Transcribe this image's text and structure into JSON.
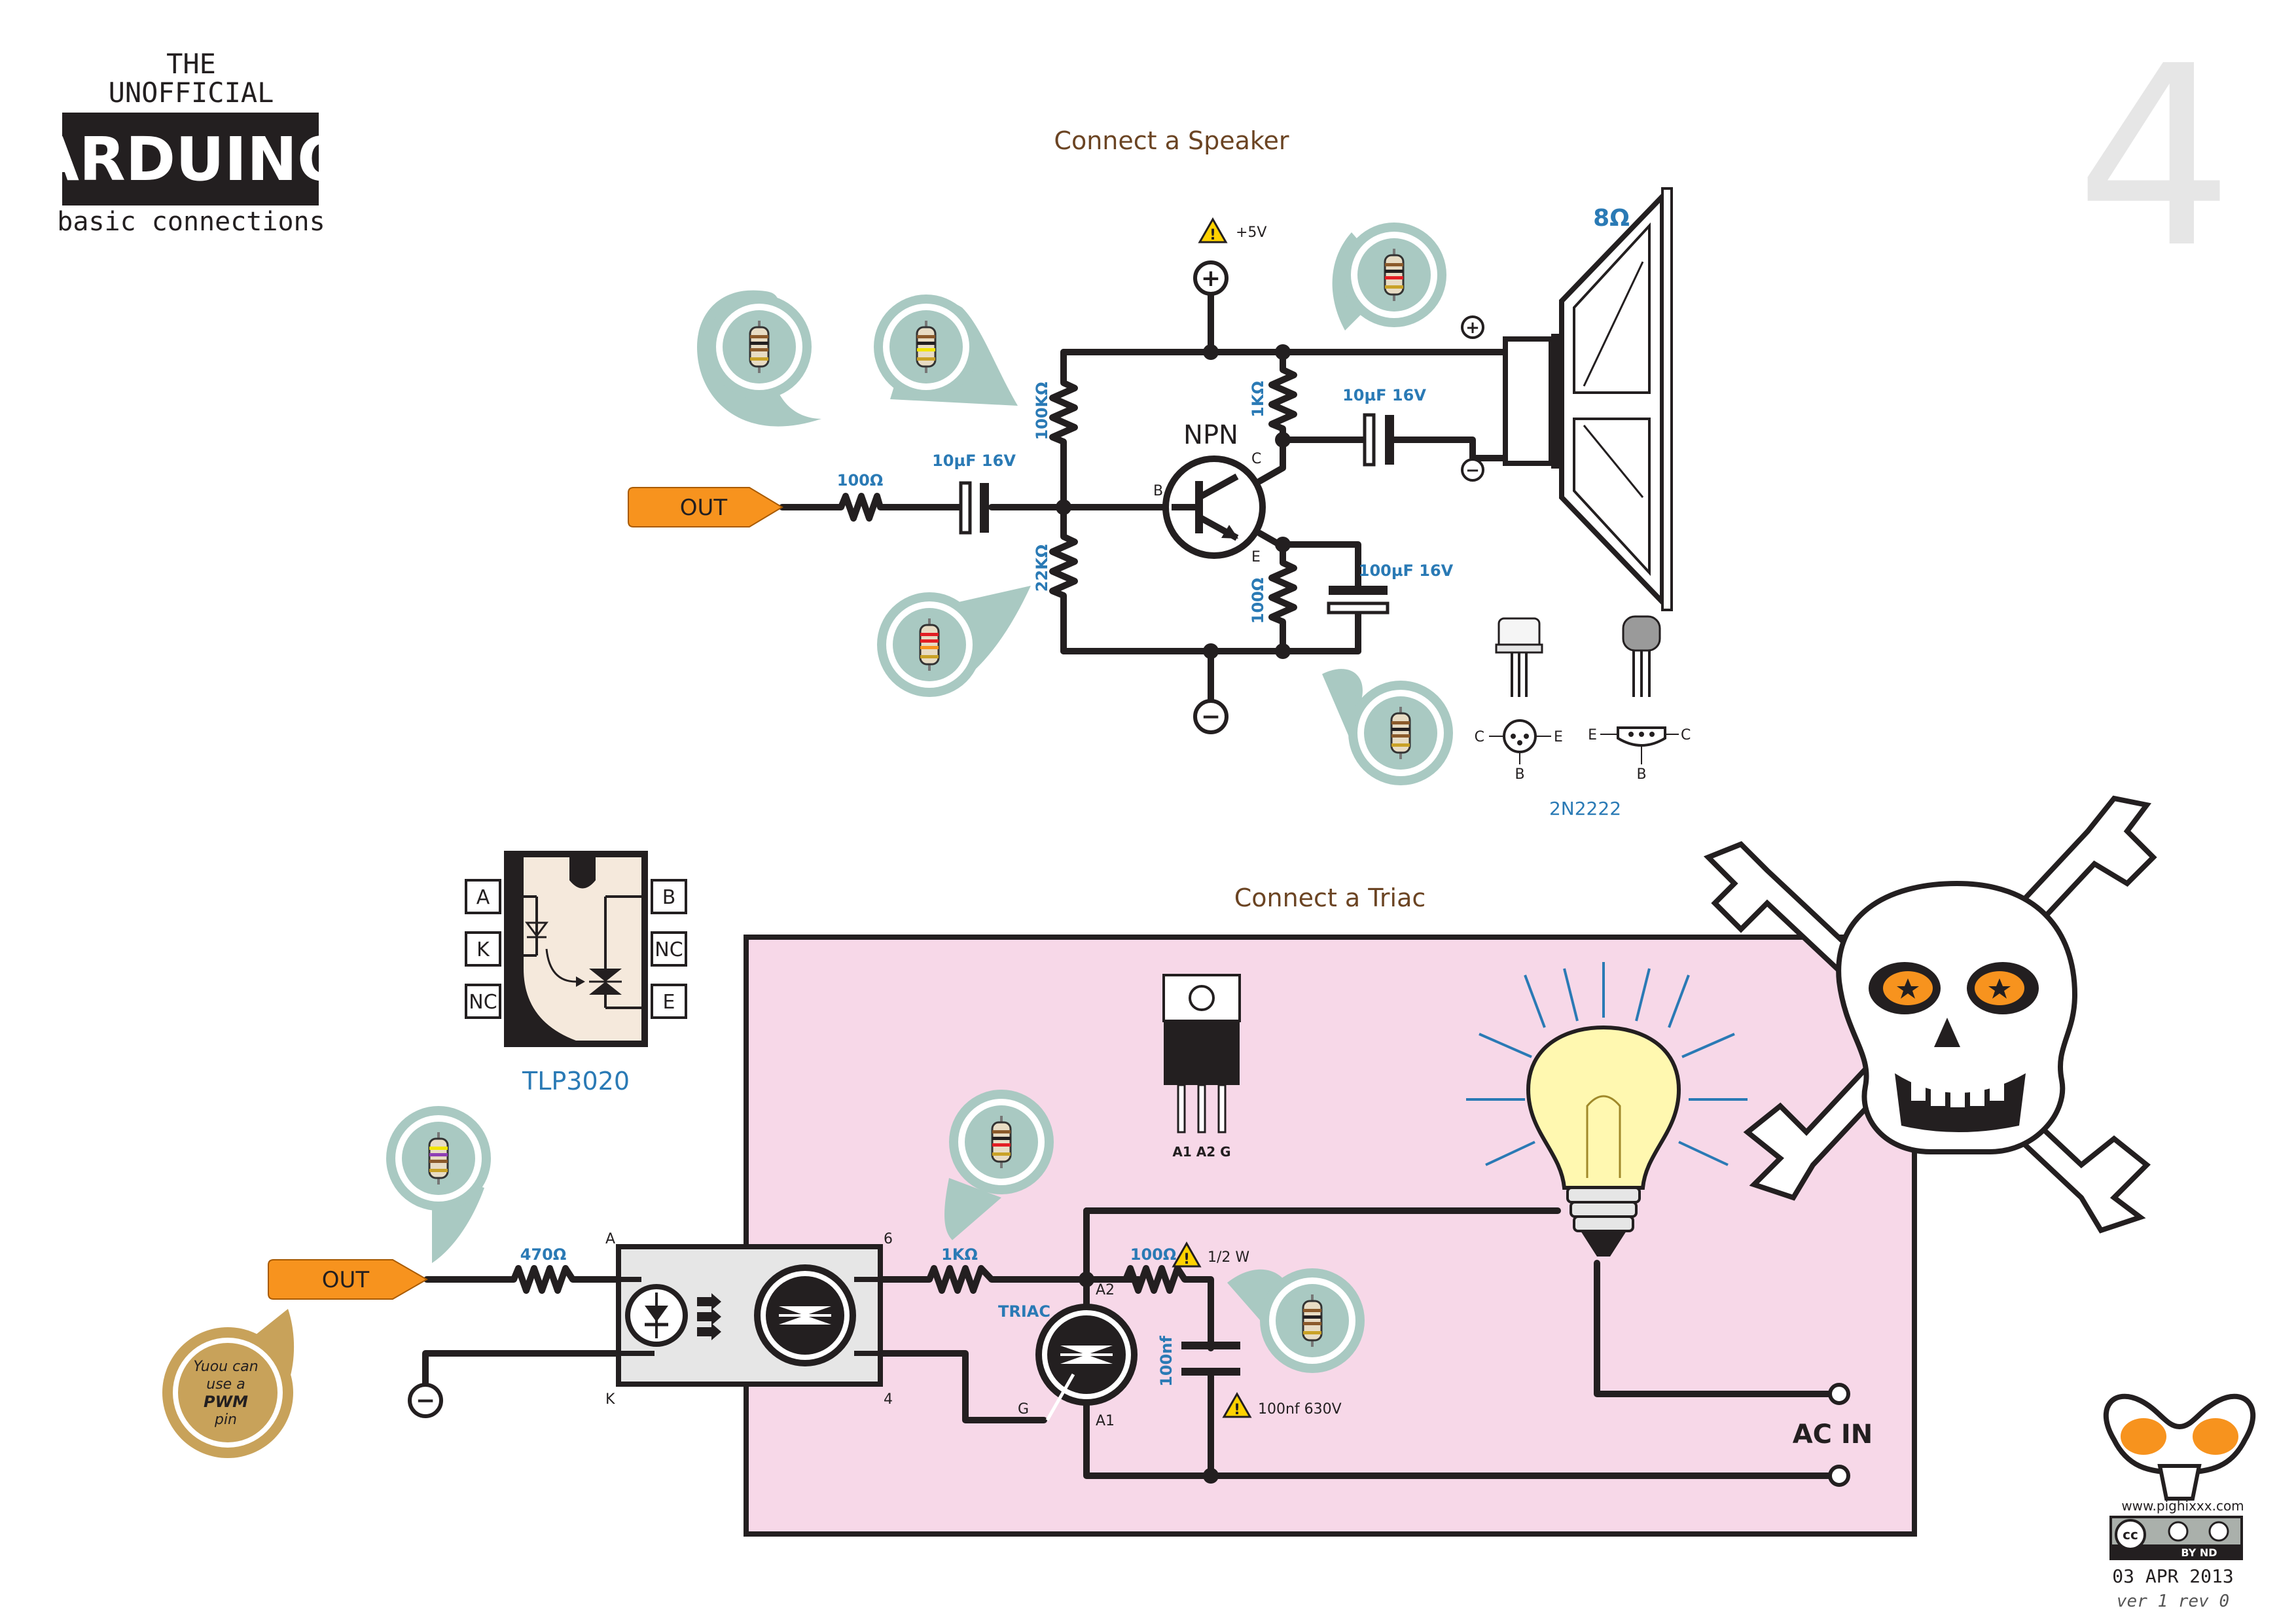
{
  "header": {
    "line1": "THE",
    "line2": "UNOFFICIAL",
    "brand": "ARDUINO",
    "subtitle": "basic connections",
    "page_number": "4"
  },
  "speaker_section": {
    "title": "Connect a Speaker",
    "out_label": "OUT",
    "supply_label": "+5V",
    "r_in": "100Ω",
    "c_in": "10µF 16V",
    "r_top": "100KΩ",
    "r_bottom": "22KΩ",
    "r_collector": "1KΩ",
    "r_emitter": "100Ω",
    "c_out": "10µF 16V",
    "c_emitter": "100µF 16V",
    "transistor": "NPN",
    "pin_b": "B",
    "pin_c": "C",
    "pin_e": "E",
    "speaker_impedance": "8Ω",
    "speaker_plus": "+",
    "speaker_minus": "−",
    "plus_symbol": "+",
    "minus_symbol": "−",
    "package_name": "2N2222",
    "pinout_c": "C",
    "pinout_b": "B",
    "pinout_e": "E"
  },
  "triac_section": {
    "title": "Connect a Triac",
    "out_label": "OUT",
    "r_in": "470Ω",
    "r_gate": "1KΩ",
    "r_snubber": "100Ω",
    "r_snubber_power": "1/2 W",
    "c_snubber": "100nf",
    "c_snubber_rating": "100nf 630V",
    "triac_label": "TRIAC",
    "pin_a2": "A2",
    "pin_a1": "A1",
    "pin_g": "G",
    "opto_pin_a": "A",
    "opto_pin_k": "K",
    "opto_pin_6": "6",
    "opto_pin_4": "4",
    "ac_in": "AC IN",
    "package_pins": "A1 A2 G",
    "minus_symbol": "−",
    "pwm_note": [
      "Yuou can",
      "use a",
      "PWM",
      "pin"
    ]
  },
  "tlp3020": {
    "name": "TLP3020",
    "pins_left": [
      "A",
      "K",
      "NC"
    ],
    "pins_right": [
      "B",
      "NC",
      "E"
    ]
  },
  "footer": {
    "website": "www.pighixxx.com",
    "license": "BY ND",
    "date": "03 APR 2013",
    "version": "ver 1 rev 0"
  },
  "colors": {
    "out_tag": "#f7931e",
    "value_blue": "#2a7ab5",
    "title_brown": "#6b4423",
    "bubble": "#a9c9c2",
    "triac_panel": "#f7d8e8",
    "pwm_bubble": "#c8a25a"
  }
}
